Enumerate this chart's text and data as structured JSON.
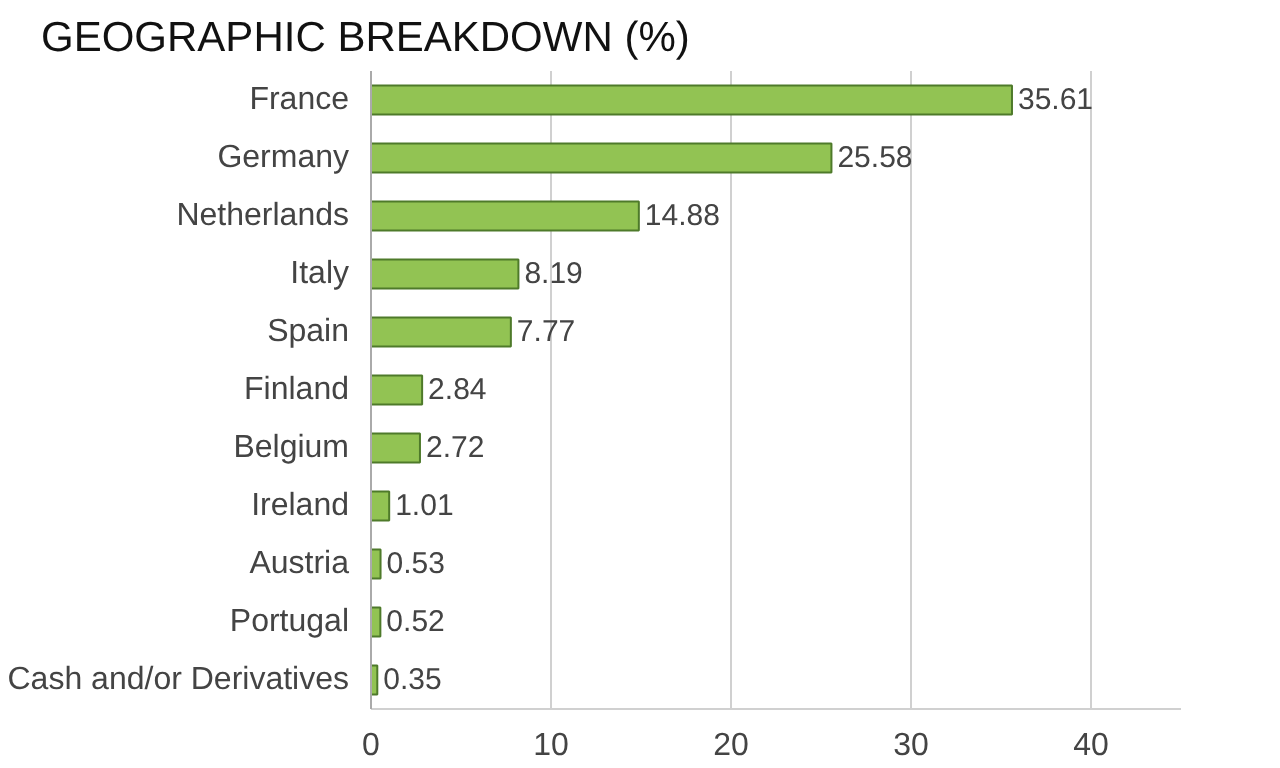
{
  "chart_data": {
    "type": "bar",
    "orientation": "horizontal",
    "title": "GEOGRAPHIC BREAKDOWN (%)",
    "categories": [
      "France",
      "Germany",
      "Netherlands",
      "Italy",
      "Spain",
      "Finland",
      "Belgium",
      "Ireland",
      "Austria",
      "Portugal",
      "Cash and/or Derivatives"
    ],
    "values": [
      35.61,
      25.58,
      14.88,
      8.19,
      7.77,
      2.84,
      2.72,
      1.01,
      0.53,
      0.52,
      0.35
    ],
    "color": "#92c353",
    "data_labels": true,
    "xlim": [
      0,
      45
    ],
    "xticks": [
      0,
      10,
      20,
      30,
      40
    ],
    "grid": "x"
  }
}
